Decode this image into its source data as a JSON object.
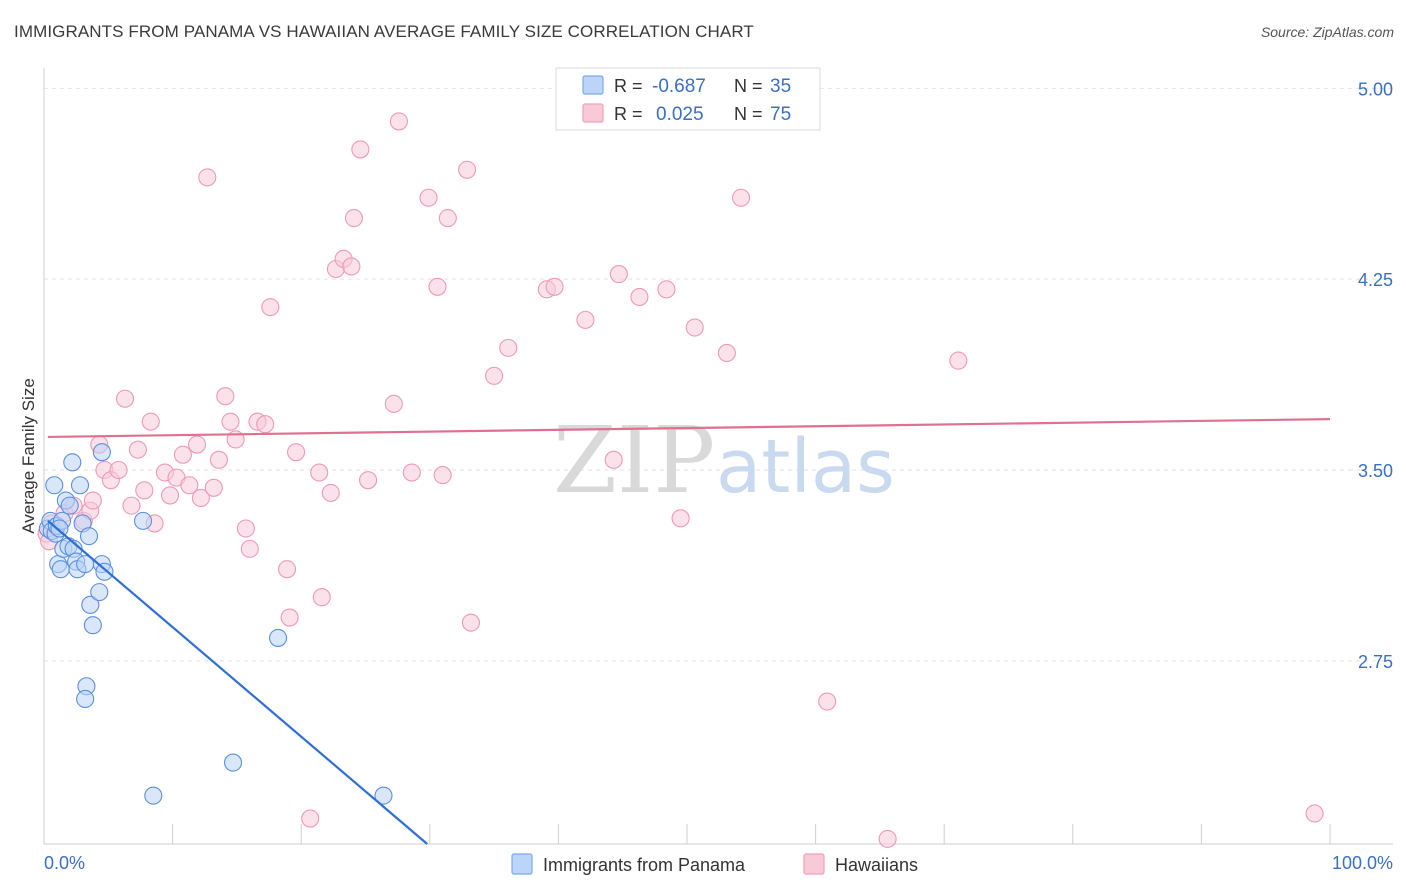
{
  "title": "IMMIGRANTS FROM PANAMA VS HAWAIIAN AVERAGE FAMILY SIZE CORRELATION CHART",
  "source": "Source: ZipAtlas.com",
  "watermark": {
    "zip": "ZIP",
    "atlas": "atlas"
  },
  "legend_box": {
    "rows": [
      {
        "r_label": "R =",
        "r_value": "-0.687",
        "n_label": "N =",
        "n_value": "35",
        "color": "#7aaaf0",
        "fill": "#bcd4f7"
      },
      {
        "r_label": "R =",
        "r_value": "0.025",
        "n_label": "N =",
        "n_value": "75",
        "color": "#f0a0b8",
        "fill": "#f8cad8"
      }
    ]
  },
  "bottom_legend": [
    {
      "label": "Immigrants from Panama",
      "color": "#7aaaf0",
      "fill": "#bcd4f7"
    },
    {
      "label": "Hawaiians",
      "color": "#f0a0b8",
      "fill": "#f8cad8"
    }
  ],
  "chart_data": {
    "type": "scatter",
    "title": "IMMIGRANTS FROM PANAMA VS HAWAIIAN AVERAGE FAMILY SIZE CORRELATION CHART",
    "xlabel": "",
    "ylabel": "Average Family Size",
    "xlim": [
      0,
      100
    ],
    "ylim": [
      2.03,
      5.08
    ],
    "x_tick_labels": [
      "0.0%",
      "100.0%"
    ],
    "y_ticks": [
      2.75,
      3.5,
      4.25,
      5.0
    ],
    "y_tick_labels": [
      "2.75",
      "3.50",
      "4.25",
      "5.00"
    ],
    "grid": "horizontal dashed",
    "legend_position": "top-center",
    "series": [
      {
        "name": "Immigrants from Panama",
        "color": "#5b8fe0",
        "fill": "#bcd4f7",
        "trend_color": "#2f6fd4",
        "trend": {
          "x": [
            0.3,
            29.8
          ],
          "y": [
            3.3,
            2.03
          ]
        },
        "points": [
          [
            0.3,
            3.27
          ],
          [
            0.5,
            3.3
          ],
          [
            0.6,
            3.26
          ],
          [
            0.8,
            3.44
          ],
          [
            0.9,
            3.25
          ],
          [
            1.0,
            3.28
          ],
          [
            1.1,
            3.13
          ],
          [
            1.3,
            3.11
          ],
          [
            1.4,
            3.3
          ],
          [
            1.5,
            3.19
          ],
          [
            1.7,
            3.38
          ],
          [
            1.9,
            3.2
          ],
          [
            2.0,
            3.36
          ],
          [
            2.2,
            3.53
          ],
          [
            2.3,
            3.19
          ],
          [
            2.5,
            3.14
          ],
          [
            2.6,
            3.11
          ],
          [
            2.8,
            3.44
          ],
          [
            3.0,
            3.29
          ],
          [
            3.2,
            3.13
          ],
          [
            3.3,
            2.65
          ],
          [
            3.2,
            2.6
          ],
          [
            3.5,
            3.24
          ],
          [
            3.6,
            2.97
          ],
          [
            3.8,
            2.89
          ],
          [
            4.3,
            3.02
          ],
          [
            4.5,
            3.57
          ],
          [
            4.5,
            3.13
          ],
          [
            4.7,
            3.1
          ],
          [
            7.7,
            3.3
          ],
          [
            8.5,
            2.22
          ],
          [
            14.7,
            2.35
          ],
          [
            18.2,
            2.84
          ],
          [
            26.4,
            2.22
          ],
          [
            1.2,
            3.27
          ]
        ]
      },
      {
        "name": "Hawaiians",
        "color": "#ee9ab4",
        "fill": "#f8cad8",
        "trend_color": "#e07090",
        "trend": {
          "x": [
            0.3,
            100
          ],
          "y": [
            3.63,
            3.7
          ]
        },
        "points": [
          [
            0.2,
            3.25
          ],
          [
            0.6,
            3.29
          ],
          [
            1.6,
            3.33
          ],
          [
            2.3,
            3.36
          ],
          [
            3.1,
            3.3
          ],
          [
            3.6,
            3.34
          ],
          [
            3.8,
            3.38
          ],
          [
            4.3,
            3.6
          ],
          [
            4.7,
            3.5
          ],
          [
            5.2,
            3.46
          ],
          [
            5.8,
            3.5
          ],
          [
            6.3,
            3.78
          ],
          [
            6.8,
            3.36
          ],
          [
            7.3,
            3.58
          ],
          [
            7.8,
            3.42
          ],
          [
            8.3,
            3.69
          ],
          [
            8.6,
            3.29
          ],
          [
            9.4,
            3.49
          ],
          [
            9.8,
            3.4
          ],
          [
            10.3,
            3.47
          ],
          [
            10.8,
            3.56
          ],
          [
            11.3,
            3.44
          ],
          [
            11.9,
            3.6
          ],
          [
            12.2,
            3.39
          ],
          [
            12.7,
            4.65
          ],
          [
            13.2,
            3.43
          ],
          [
            13.6,
            3.54
          ],
          [
            14.1,
            3.79
          ],
          [
            14.5,
            3.69
          ],
          [
            14.9,
            3.62
          ],
          [
            15.7,
            3.27
          ],
          [
            16.0,
            3.19
          ],
          [
            16.6,
            3.69
          ],
          [
            17.2,
            3.68
          ],
          [
            17.6,
            4.14
          ],
          [
            18.9,
            3.11
          ],
          [
            19.1,
            2.92
          ],
          [
            19.6,
            3.57
          ],
          [
            20.7,
            2.13
          ],
          [
            21.4,
            3.49
          ],
          [
            21.6,
            3.0
          ],
          [
            22.3,
            3.41
          ],
          [
            22.7,
            4.29
          ],
          [
            23.3,
            4.33
          ],
          [
            23.9,
            4.3
          ],
          [
            24.1,
            4.49
          ],
          [
            24.6,
            4.76
          ],
          [
            25.2,
            3.46
          ],
          [
            27.2,
            3.76
          ],
          [
            27.6,
            4.87
          ],
          [
            28.6,
            3.49
          ],
          [
            29.9,
            4.57
          ],
          [
            30.6,
            4.22
          ],
          [
            31.0,
            3.48
          ],
          [
            31.4,
            4.49
          ],
          [
            32.9,
            4.68
          ],
          [
            33.2,
            2.9
          ],
          [
            35.0,
            3.87
          ],
          [
            36.1,
            3.98
          ],
          [
            39.1,
            4.21
          ],
          [
            39.7,
            4.22
          ],
          [
            42.1,
            4.09
          ],
          [
            44.3,
            3.54
          ],
          [
            44.7,
            4.27
          ],
          [
            46.3,
            4.18
          ],
          [
            48.4,
            4.21
          ],
          [
            49.5,
            3.31
          ],
          [
            50.6,
            4.06
          ],
          [
            53.1,
            3.96
          ],
          [
            54.2,
            4.57
          ],
          [
            60.9,
            2.59
          ],
          [
            65.6,
            2.05
          ],
          [
            71.1,
            3.93
          ],
          [
            98.8,
            2.15
          ],
          [
            0.4,
            3.22
          ]
        ]
      }
    ]
  }
}
